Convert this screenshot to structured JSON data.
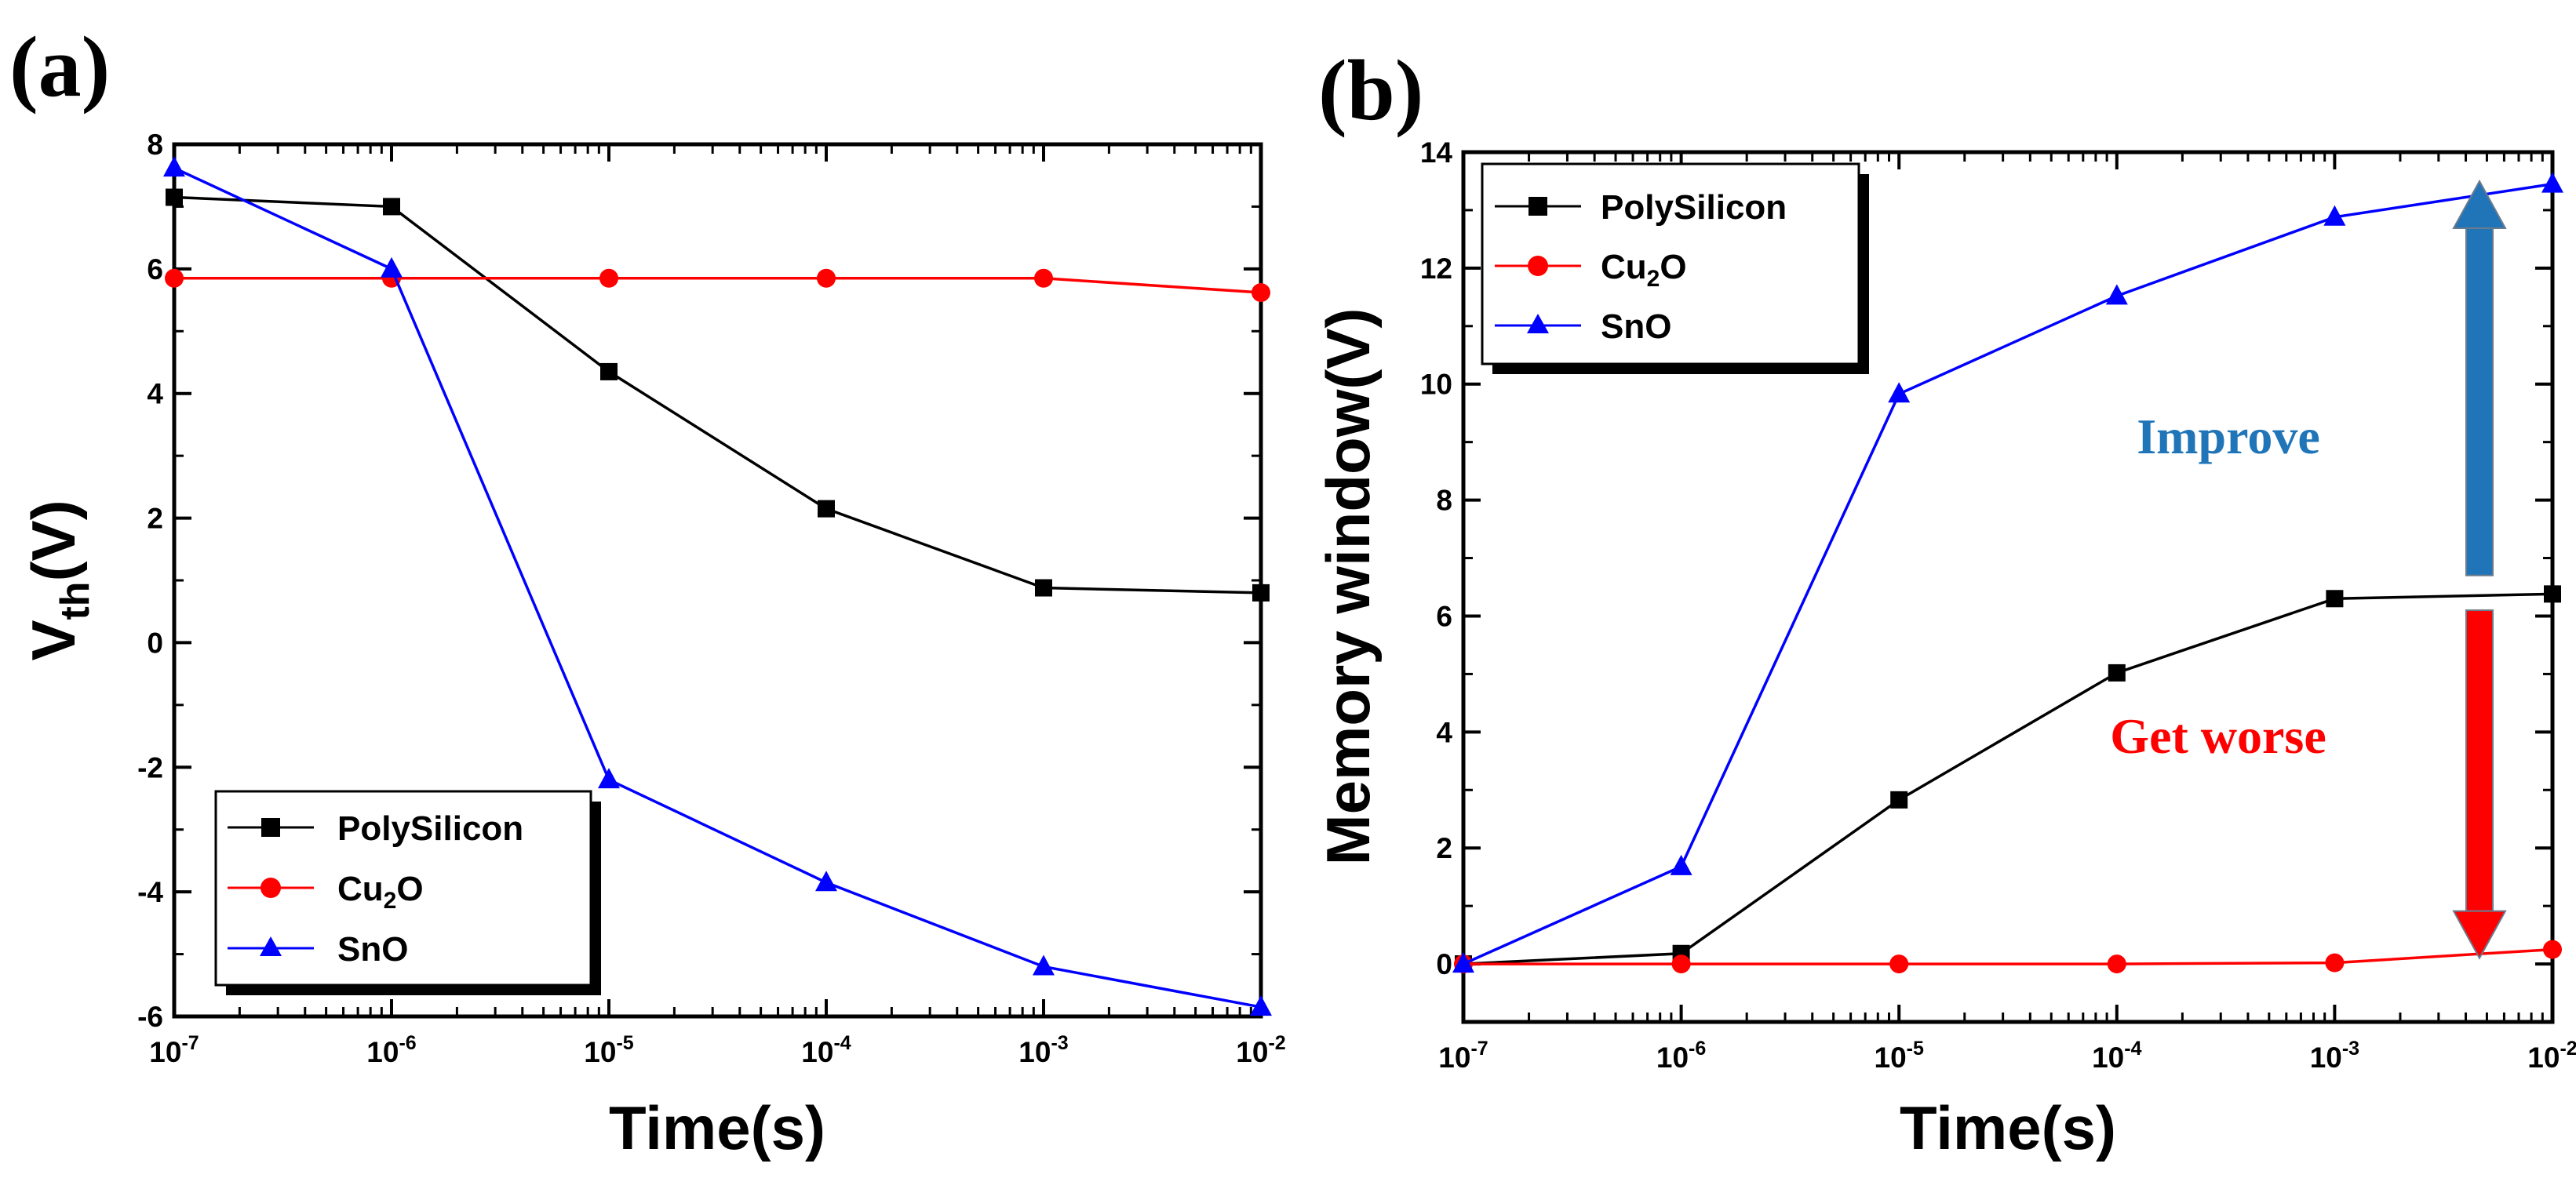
{
  "chart_data": [
    {
      "panel_label": "(a)",
      "type": "line",
      "xscale": "log",
      "xlim_exp": [
        -7,
        -2
      ],
      "x_exponents": [
        -7,
        -6,
        -5,
        -4,
        -3,
        -2
      ],
      "ylim": [
        -6,
        8
      ],
      "yticks": [
        "-6",
        "-4",
        "-2",
        "0",
        "2",
        "4",
        "6",
        "8"
      ],
      "xlabel": "Time(s)",
      "ylabel_main": "V",
      "ylabel_sub": "th",
      "ylabel_tail": "(V)",
      "tick_base": "10",
      "tick_exps": [
        "-7",
        "-6",
        "-5",
        "-4",
        "-3",
        "-2"
      ],
      "legend_position": "bottom-left",
      "series": [
        {
          "name": "PolySilicon",
          "color": "#000000",
          "marker": "square",
          "values": [
            7.15,
            7.0,
            4.35,
            2.15,
            0.88,
            0.8
          ]
        },
        {
          "name": "Cu2O",
          "name_main": "Cu",
          "name_sub": "2",
          "name_tail": "O",
          "color": "#ff0000",
          "marker": "circle",
          "values": [
            5.85,
            5.85,
            5.85,
            5.85,
            5.85,
            5.62
          ]
        },
        {
          "name": "SnO",
          "color": "#0000ff",
          "marker": "triangle",
          "values": [
            7.62,
            6.0,
            -2.2,
            -3.85,
            -5.2,
            -5.85
          ]
        }
      ]
    },
    {
      "panel_label": "(b)",
      "type": "line",
      "xscale": "log",
      "xlim_exp": [
        -7,
        -2
      ],
      "x_exponents": [
        -7,
        -6,
        -5,
        -4,
        -3,
        -2
      ],
      "ylim": [
        -1,
        14
      ],
      "yticks": [
        "0",
        "2",
        "4",
        "6",
        "8",
        "10",
        "12",
        "14"
      ],
      "xlabel": "Time(s)",
      "ylabel": "Memory window(V)",
      "tick_base": "10",
      "tick_exps": [
        "-7",
        "-6",
        "-5",
        "-4",
        "-3",
        "-2"
      ],
      "legend_position": "top-left",
      "series": [
        {
          "name": "PolySilicon",
          "color": "#000000",
          "marker": "square",
          "values": [
            0.0,
            0.18,
            2.83,
            5.02,
            6.3,
            6.38
          ]
        },
        {
          "name": "Cu2O",
          "name_main": "Cu",
          "name_sub": "2",
          "name_tail": "O",
          "color": "#ff0000",
          "marker": "circle",
          "values": [
            0.0,
            0.0,
            0.0,
            0.0,
            0.02,
            0.25
          ]
        },
        {
          "name": "SnO",
          "color": "#0000ff",
          "marker": "triangle",
          "values": [
            0.0,
            1.68,
            9.83,
            11.52,
            12.88,
            13.45
          ]
        }
      ],
      "annotations": [
        {
          "text": "Improve",
          "color": "#1f75b8"
        },
        {
          "text": "Get worse",
          "color": "#ff0000"
        }
      ],
      "arrows": [
        {
          "name": "improve-arrow",
          "color": "#1f75b8",
          "from_y": 6.7,
          "to_y": 13.5
        },
        {
          "name": "get-worse-arrow",
          "color": "#ff0000",
          "from_y": 6.1,
          "to_y": 0.1
        }
      ]
    }
  ]
}
